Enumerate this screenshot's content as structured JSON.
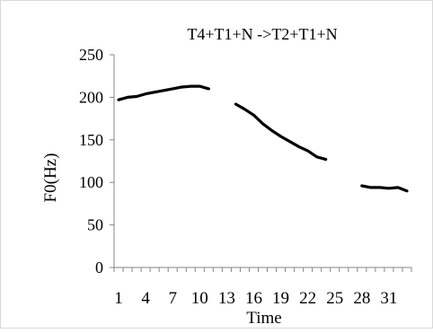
{
  "chart_data": {
    "type": "line",
    "title": "T4+T1+N ->T2+T1+N",
    "xlabel": "Time",
    "ylabel": "F0(Hz)",
    "ylim": [
      0,
      250
    ],
    "yticks": [
      0,
      50,
      100,
      150,
      200,
      250
    ],
    "xtick_labels": [
      "1",
      "4",
      "7",
      "10",
      "13",
      "16",
      "19",
      "22",
      "25",
      "28",
      "31"
    ],
    "x_count": 33,
    "grid": false,
    "legend": "none",
    "line_color": "#000000",
    "segments": [
      {
        "x": [
          1,
          2,
          3,
          4,
          5,
          6,
          7,
          8,
          9,
          10,
          11
        ],
        "y": [
          197,
          200,
          201,
          204,
          206,
          208,
          210,
          212,
          213,
          213,
          210
        ]
      },
      {
        "x": [
          14,
          15,
          16,
          17,
          18,
          19,
          20,
          21,
          22,
          23,
          24
        ],
        "y": [
          192,
          186,
          179,
          169,
          161,
          154,
          148,
          142,
          137,
          130,
          127
        ]
      },
      {
        "x": [
          28,
          29,
          30,
          31,
          32,
          33
        ],
        "y": [
          96,
          94,
          94,
          93,
          94,
          90
        ]
      }
    ]
  }
}
